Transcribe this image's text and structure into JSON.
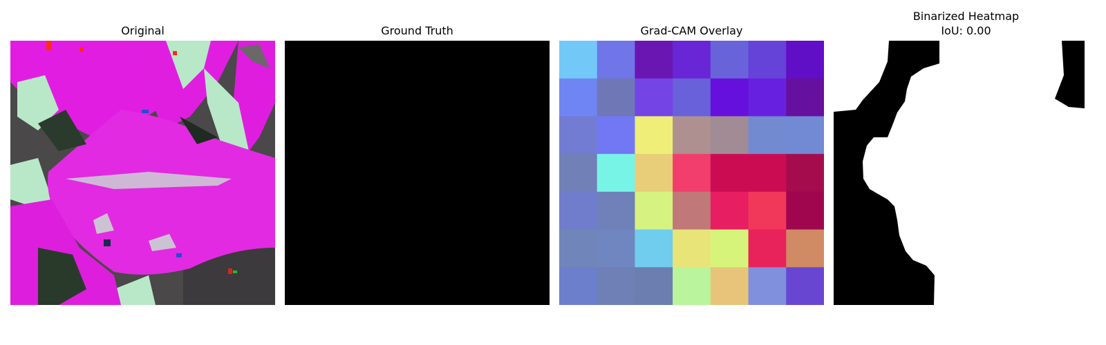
{
  "panels": [
    {
      "id": "original",
      "title": "Original"
    },
    {
      "id": "ground_truth",
      "title": "Ground Truth"
    },
    {
      "id": "gradcam",
      "title": "Grad-CAM Overlay"
    },
    {
      "id": "binarized",
      "title": "Binarized Heatmap",
      "subtitle": "IoU: 0.00"
    }
  ],
  "gradcam_grid": {
    "rows": 7,
    "cols": 7,
    "colors": [
      [
        "#72c9f8",
        "#7075e8",
        "#6a16b2",
        "#6826d6",
        "#6963da",
        "#6542d8",
        "#610ec7"
      ],
      [
        "#7085f4",
        "#7077b6",
        "#7444e4",
        "#6961da",
        "#6610dd",
        "#6820e0",
        "#66109f"
      ],
      [
        "#727cd2",
        "#7278f4",
        "#eeee78",
        "#ae9090",
        "#a18b95",
        "#728ad0",
        "#728ad4"
      ],
      [
        "#7280b8",
        "#78f4e6",
        "#e8ce78",
        "#f23e6c",
        "#cc0c52",
        "#cc0c52",
        "#a50c4e"
      ],
      [
        "#707dcc",
        "#7080b8",
        "#d6f280",
        "#c07878",
        "#e81e62",
        "#f2385a",
        "#a0064e"
      ],
      [
        "#7086ba",
        "#7086c0",
        "#70cdee",
        "#e8e478",
        "#d6f47a",
        "#e8225a",
        "#d08a64"
      ],
      [
        "#6c7fcc",
        "#6e80b6",
        "#6c7eb0",
        "#baf49c",
        "#e8c47a",
        "#8090dc",
        "#6846d2"
      ]
    ]
  },
  "colors": {
    "leaf_magenta": "#e61ee6",
    "leaf_light": "#b8e8c8",
    "background_dark": "#3a3a3a",
    "mask_black": "#000000",
    "mask_white": "#ffffff"
  }
}
